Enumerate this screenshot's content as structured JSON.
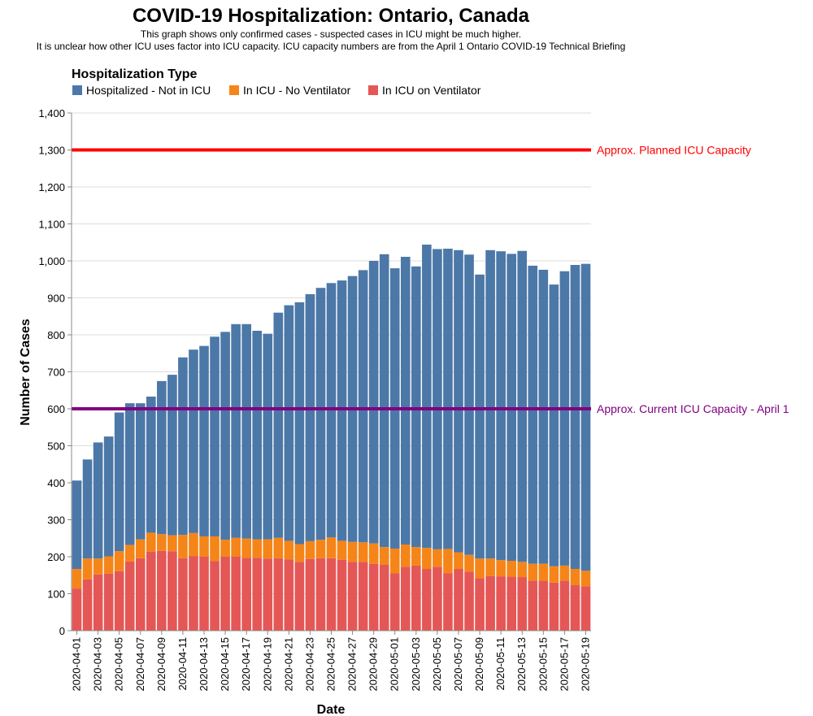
{
  "colors": {
    "hospitalized": "#4c78a8",
    "icu_no_vent": "#f58518",
    "icu_vent": "#e45756",
    "planned_line": "#ff0000",
    "current_line": "#800080"
  },
  "chart_data": {
    "type": "bar",
    "stacked": true,
    "title": "COVID-19 Hospitalization: Ontario, Canada",
    "subtitle": [
      "This graph shows only confirmed cases - suspected cases in ICU might be much higher.",
      "It is unclear how other ICU uses factor into ICU capacity. ICU capacity numbers are from the April 1 Ontario COVID-19 Technical Briefing"
    ],
    "xlabel": "Date",
    "ylabel": "Number of Cases",
    "ylim": [
      0,
      1400
    ],
    "yticks": [
      "0",
      "100",
      "200",
      "300",
      "400",
      "500",
      "600",
      "700",
      "800",
      "900",
      "1,000",
      "1,100",
      "1,200",
      "1,300",
      "1,400"
    ],
    "grid": true,
    "legend": {
      "title": "Hospitalization Type",
      "position": "top-left",
      "entries": [
        "Hospitalized - Not in ICU",
        "In ICU - No Ventilator",
        "In ICU on Ventilator"
      ]
    },
    "categories": [
      "2020-04-01",
      "2020-04-02",
      "2020-04-03",
      "2020-04-04",
      "2020-04-05",
      "2020-04-06",
      "2020-04-07",
      "2020-04-08",
      "2020-04-09",
      "2020-04-10",
      "2020-04-11",
      "2020-04-12",
      "2020-04-13",
      "2020-04-14",
      "2020-04-15",
      "2020-04-16",
      "2020-04-17",
      "2020-04-18",
      "2020-04-19",
      "2020-04-20",
      "2020-04-21",
      "2020-04-22",
      "2020-04-23",
      "2020-04-24",
      "2020-04-25",
      "2020-04-26",
      "2020-04-27",
      "2020-04-28",
      "2020-04-29",
      "2020-04-30",
      "2020-05-01",
      "2020-05-02",
      "2020-05-03",
      "2020-05-04",
      "2020-05-05",
      "2020-05-06",
      "2020-05-07",
      "2020-05-08",
      "2020-05-09",
      "2020-05-10",
      "2020-05-11",
      "2020-05-12",
      "2020-05-13",
      "2020-05-14",
      "2020-05-15",
      "2020-05-16",
      "2020-05-17",
      "2020-05-18",
      "2020-05-19"
    ],
    "xtick_labels": [
      "2020-04-01",
      "2020-04-03",
      "2020-04-05",
      "2020-04-07",
      "2020-04-09",
      "2020-04-11",
      "2020-04-13",
      "2020-04-15",
      "2020-04-17",
      "2020-04-19",
      "2020-04-21",
      "2020-04-23",
      "2020-04-25",
      "2020-04-27",
      "2020-04-29",
      "2020-05-01",
      "2020-05-03",
      "2020-05-05",
      "2020-05-07",
      "2020-05-09",
      "2020-05-11",
      "2020-05-13",
      "2020-05-15",
      "2020-05-17",
      "2020-05-19"
    ],
    "series": [
      {
        "name": "In ICU on Ventilator",
        "values": [
          114,
          139,
          152,
          154,
          161,
          187,
          196,
          214,
          216,
          215,
          196,
          202,
          200,
          188,
          200,
          200,
          197,
          197,
          195,
          196,
          193,
          186,
          194,
          196,
          196,
          192,
          186,
          186,
          181,
          178,
          155,
          173,
          176,
          167,
          173,
          155,
          167,
          160,
          142,
          148,
          147,
          146,
          145,
          135,
          135,
          130,
          135,
          123,
          120
        ]
      },
      {
        "name": "In ICU - No Ventilator",
        "values": [
          53,
          56,
          43,
          47,
          54,
          45,
          51,
          51,
          45,
          43,
          63,
          62,
          55,
          67,
          46,
          51,
          52,
          50,
          52,
          55,
          50,
          48,
          48,
          50,
          56,
          51,
          54,
          53,
          55,
          48,
          67,
          60,
          50,
          57,
          47,
          66,
          45,
          45,
          53,
          47,
          44,
          43,
          41,
          46,
          46,
          44,
          41,
          44,
          42
        ]
      },
      {
        "name": "Hospitalized - Not in ICU",
        "values": [
          239,
          268,
          314,
          324,
          375,
          383,
          368,
          368,
          414,
          434,
          480,
          496,
          515,
          540,
          562,
          578,
          580,
          564,
          556,
          609,
          637,
          654,
          668,
          681,
          688,
          704,
          719,
          736,
          764,
          792,
          758,
          778,
          759,
          820,
          812,
          812,
          817,
          812,
          768,
          834,
          835,
          830,
          841,
          806,
          795,
          762,
          796,
          822,
          830
        ]
      }
    ],
    "reference_lines": [
      {
        "value": 1300,
        "label": "Approx. Planned ICU Capacity"
      },
      {
        "value": 600,
        "label": "Approx. Current ICU Capacity - April 1"
      }
    ]
  }
}
